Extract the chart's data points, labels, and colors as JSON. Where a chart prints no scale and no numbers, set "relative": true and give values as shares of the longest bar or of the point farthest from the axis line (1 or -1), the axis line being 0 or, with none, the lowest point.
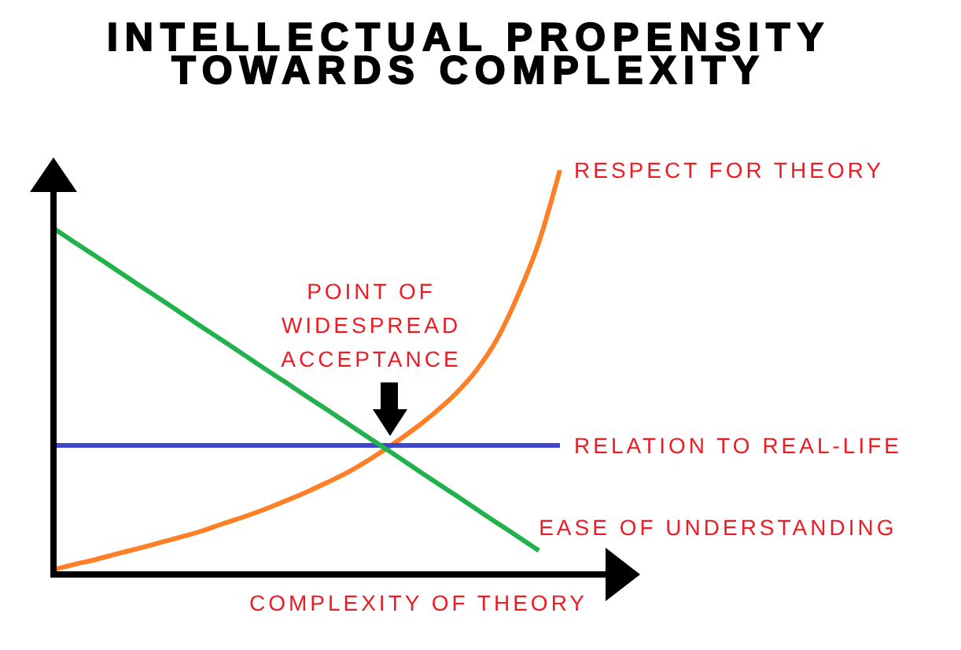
{
  "chart_data": {
    "type": "line",
    "title": "INTELLECTUAL PROPENSITY\nTOWARDS COMPLEXITY",
    "xlabel": "COMPLEXITY OF THEORY",
    "annotations": [
      "POINT OF\nWIDESPREAD\nACCEPTANCE"
    ],
    "categories": [
      null,
      null,
      null,
      null,
      null,
      null,
      null,
      null,
      null,
      null,
      null,
      null,
      null,
      null,
      null,
      null,
      null,
      null,
      null,
      null,
      null,
      null,
      null,
      null,
      null
    ],
    "series": [
      {
        "name": "RESPECT FOR THEORY",
        "color": "#ff7f27",
        "values": [
          0.012,
          0.025,
          0.037,
          0.051,
          0.064,
          0.078,
          0.092,
          0.107,
          0.125,
          0.142,
          0.161,
          0.182,
          0.204,
          0.228,
          0.254,
          0.285,
          0.319,
          0.356,
          0.397,
          0.444,
          0.502,
          0.58,
          0.689,
          0.821,
          1
        ]
      },
      {
        "name": "RELATION TO REAL-LIFE",
        "color": "#3f48cc",
        "values": [
          0.319,
          0.319,
          0.319,
          0.319,
          0.319,
          0.319,
          0.319,
          0.319,
          0.319,
          0.319,
          0.319,
          0.319,
          0.319,
          0.319,
          0.319,
          0.319,
          0.319,
          0.319,
          0.319,
          0.319,
          0.319,
          0.319,
          0.319,
          0.319,
          0.319
        ]
      },
      {
        "name": "EASE OF UNDERSTANDING",
        "color": "#22b14c",
        "values": [
          0.856,
          0.821,
          0.787,
          0.752,
          0.717,
          0.683,
          0.648,
          0.613,
          0.579,
          0.544,
          0.509,
          0.475,
          0.44,
          0.406,
          0.371,
          0.336,
          0.302,
          0.267,
          0.232,
          0.198,
          0.163,
          0.128,
          0.094,
          0.059,
          null
        ]
      }
    ],
    "relative": true,
    "marker": "none"
  }
}
